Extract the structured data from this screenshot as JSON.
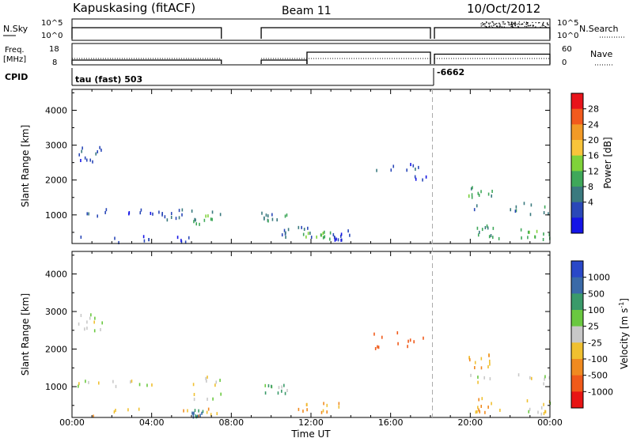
{
  "header": {
    "station": "Kapuskasing (fitACF)",
    "beam": "Beam 11",
    "date": "10/Oct/2012"
  },
  "time_axis": {
    "label": "Time UT",
    "range_hours": [
      0,
      24
    ],
    "tick_labels": [
      "00:00",
      "04:00",
      "08:00",
      "12:00",
      "16:00",
      "20:00",
      "00:00"
    ],
    "tick_hours": [
      0,
      4,
      8,
      12,
      16,
      20,
      24
    ]
  },
  "sky_panel": {
    "left_label": "N.Sky",
    "left_ticks": [
      "10^5",
      "10^0"
    ],
    "right_ticks": [
      "10^5",
      "10^0"
    ],
    "right_label": "N.Search"
  },
  "freq_panel": {
    "left_label": "Freq.",
    "left_unit": "[MHz]",
    "left_ticks": [
      "18",
      "8"
    ],
    "right_ticks": [
      "60",
      "0"
    ],
    "right_label": "Nave"
  },
  "cpid_panel": {
    "label": "CPID",
    "segments": [
      {
        "text": "tau (fast) 503",
        "start_hour": 0,
        "end_hour": 18.2
      },
      {
        "text": "-6662",
        "start_hour": 18.2,
        "end_hour": 24
      }
    ]
  },
  "power_panel": {
    "ylabel": "Slant Range [km]",
    "yticks": [
      1000,
      2000,
      3000,
      4000
    ],
    "yrange_km": [
      180,
      4600
    ],
    "colorbar_label": "Power [dB]",
    "colorbar_ticks": [
      "28",
      "24",
      "20",
      "16",
      "12",
      "8",
      "4"
    ],
    "colorbar_colors": [
      "#e8141b",
      "#f25a1d",
      "#f29a27",
      "#f8c43a",
      "#7fd23a",
      "#3fa85a",
      "#3a7a7f",
      "#2a48b8",
      "#1414e6"
    ]
  },
  "velocity_panel": {
    "ylabel": "Slant Range [km]",
    "yticks": [
      1000,
      2000,
      3000,
      4000
    ],
    "yrange_km": [
      180,
      4600
    ],
    "colorbar_label": "Velocity  [m s",
    "colorbar_label_sup": "-1",
    "colorbar_label_end": "]",
    "colorbar_ticks": [
      "1000",
      "500",
      "100",
      "25",
      "-25",
      "-100",
      "-500",
      "-1000"
    ],
    "colorbar_colors": [
      "#2a48c8",
      "#3a6aa8",
      "#3a9a6a",
      "#6ac840",
      "#c8c8c8",
      "#f0c030",
      "#f08a20",
      "#f05a1a",
      "#e81414"
    ]
  },
  "chart_data": {
    "type": "heatmap",
    "x_unit": "hours UT",
    "y_unit": "km",
    "operational_periods_hours": [
      [
        0,
        7.5
      ],
      [
        9.5,
        18
      ],
      [
        18.2,
        24
      ]
    ],
    "frequency_mhz": [
      {
        "start_hour": 0,
        "end_hour": 7.5,
        "value": 10
      },
      {
        "start_hour": 9.5,
        "end_hour": 11.8,
        "value": 10
      },
      {
        "start_hour": 11.8,
        "end_hour": 18,
        "value": 14
      },
      {
        "start_hour": 18.2,
        "end_hour": 24,
        "value": 13
      }
    ],
    "power_echo_regions": [
      {
        "t0": 0.3,
        "t1": 1.5,
        "r0": 2500,
        "r1": 3000,
        "level_db": 6
      },
      {
        "t0": 0.2,
        "t1": 4.5,
        "r0": 1000,
        "r1": 1200,
        "level_db": 6
      },
      {
        "t0": 4.5,
        "t1": 6.0,
        "r0": 900,
        "r1": 1200,
        "level_db": 8
      },
      {
        "t0": 6.0,
        "t1": 7.5,
        "r0": 700,
        "r1": 1300,
        "level_db": 14
      },
      {
        "t0": 0.3,
        "t1": 7.4,
        "r0": 250,
        "r1": 450,
        "level_db": 6
      },
      {
        "t0": 9.5,
        "t1": 10.8,
        "r0": 800,
        "r1": 1100,
        "level_db": 10
      },
      {
        "t0": 10.5,
        "t1": 12.0,
        "r0": 400,
        "r1": 800,
        "level_db": 8
      },
      {
        "t0": 11.3,
        "t1": 13.0,
        "r0": 350,
        "r1": 550,
        "level_db": 16
      },
      {
        "t0": 13.0,
        "t1": 14.0,
        "r0": 300,
        "r1": 600,
        "level_db": 6
      },
      {
        "t0": 15.0,
        "t1": 17.8,
        "r0": 2000,
        "r1": 2500,
        "level_db": 6
      },
      {
        "t0": 19.9,
        "t1": 21.2,
        "r0": 1500,
        "r1": 1900,
        "level_db": 14
      },
      {
        "t0": 19.9,
        "t1": 24,
        "r0": 1050,
        "r1": 1400,
        "level_db": 10
      },
      {
        "t0": 20.2,
        "t1": 21.5,
        "r0": 350,
        "r1": 750,
        "level_db": 12
      },
      {
        "t0": 22.5,
        "t1": 24,
        "r0": 300,
        "r1": 700,
        "level_db": 16
      }
    ],
    "velocity_echo_regions": [
      {
        "t0": 0.3,
        "t1": 1.5,
        "r0": 2500,
        "r1": 3000,
        "velocity": 0
      },
      {
        "t0": 0.2,
        "t1": 4.5,
        "r0": 1000,
        "r1": 1200,
        "velocity": 0
      },
      {
        "t0": 6.0,
        "t1": 7.5,
        "r0": 700,
        "r1": 1300,
        "velocity": 0
      },
      {
        "t0": 0.3,
        "t1": 7.4,
        "r0": 250,
        "r1": 450,
        "velocity": -100
      },
      {
        "t0": 6.0,
        "t1": 6.6,
        "r0": 220,
        "r1": 420,
        "velocity": 100
      },
      {
        "t0": 9.5,
        "t1": 10.8,
        "r0": 800,
        "r1": 1100,
        "velocity": 50
      },
      {
        "t0": 11.3,
        "t1": 13.8,
        "r0": 350,
        "r1": 600,
        "velocity": -100
      },
      {
        "t0": 15.0,
        "t1": 17.8,
        "r0": 2000,
        "r1": 2500,
        "velocity": -500
      },
      {
        "t0": 19.9,
        "t1": 21.2,
        "r0": 1500,
        "r1": 1900,
        "velocity": -100
      },
      {
        "t0": 19.9,
        "t1": 24,
        "r0": 1050,
        "r1": 1400,
        "velocity": 0
      },
      {
        "t0": 20.2,
        "t1": 21.5,
        "r0": 350,
        "r1": 750,
        "velocity": -100
      },
      {
        "t0": 22.5,
        "t1": 24,
        "r0": 300,
        "r1": 700,
        "velocity": 0
      }
    ]
  }
}
